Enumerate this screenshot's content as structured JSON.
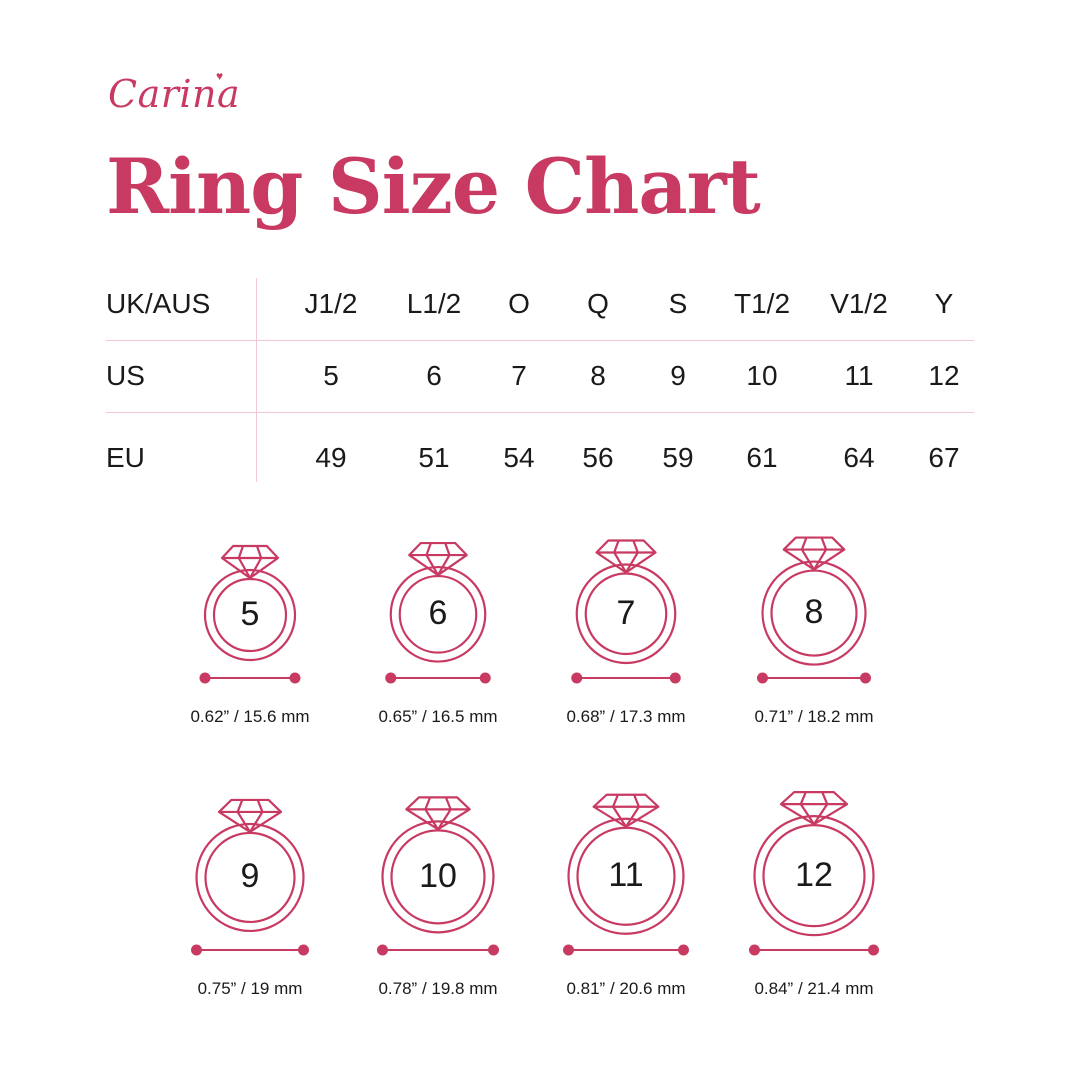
{
  "brand": {
    "name": "Carina",
    "heart_icon": "heart-icon"
  },
  "title": "Ring Size Chart",
  "accent_color": "#c83a62",
  "table": {
    "rows": [
      {
        "label": "UK/AUS",
        "values": [
          "J1/2",
          "L1/2",
          "O",
          "Q",
          "S",
          "T1/2",
          "V1/2",
          "Y"
        ]
      },
      {
        "label": "US",
        "values": [
          "5",
          "6",
          "7",
          "8",
          "9",
          "10",
          "11",
          "12"
        ]
      },
      {
        "label": "EU",
        "values": [
          "49",
          "51",
          "54",
          "56",
          "59",
          "61",
          "64",
          "67"
        ]
      }
    ]
  },
  "rings": [
    {
      "size": "5",
      "measure": "0.62” / 15.6 mm",
      "diameter_mm": 15.6
    },
    {
      "size": "6",
      "measure": "0.65” / 16.5 mm",
      "diameter_mm": 16.5
    },
    {
      "size": "7",
      "measure": "0.68” / 17.3 mm",
      "diameter_mm": 17.3
    },
    {
      "size": "8",
      "measure": "0.71” / 18.2 mm",
      "diameter_mm": 18.2
    },
    {
      "size": "9",
      "measure": "0.75” / 19 mm",
      "diameter_mm": 19
    },
    {
      "size": "10",
      "measure": "0.78” / 19.8 mm",
      "diameter_mm": 19.8
    },
    {
      "size": "11",
      "measure": "0.81” / 20.6 mm",
      "diameter_mm": 20.6
    },
    {
      "size": "12",
      "measure": "0.84” / 21.4 mm",
      "diameter_mm": 21.4
    }
  ]
}
